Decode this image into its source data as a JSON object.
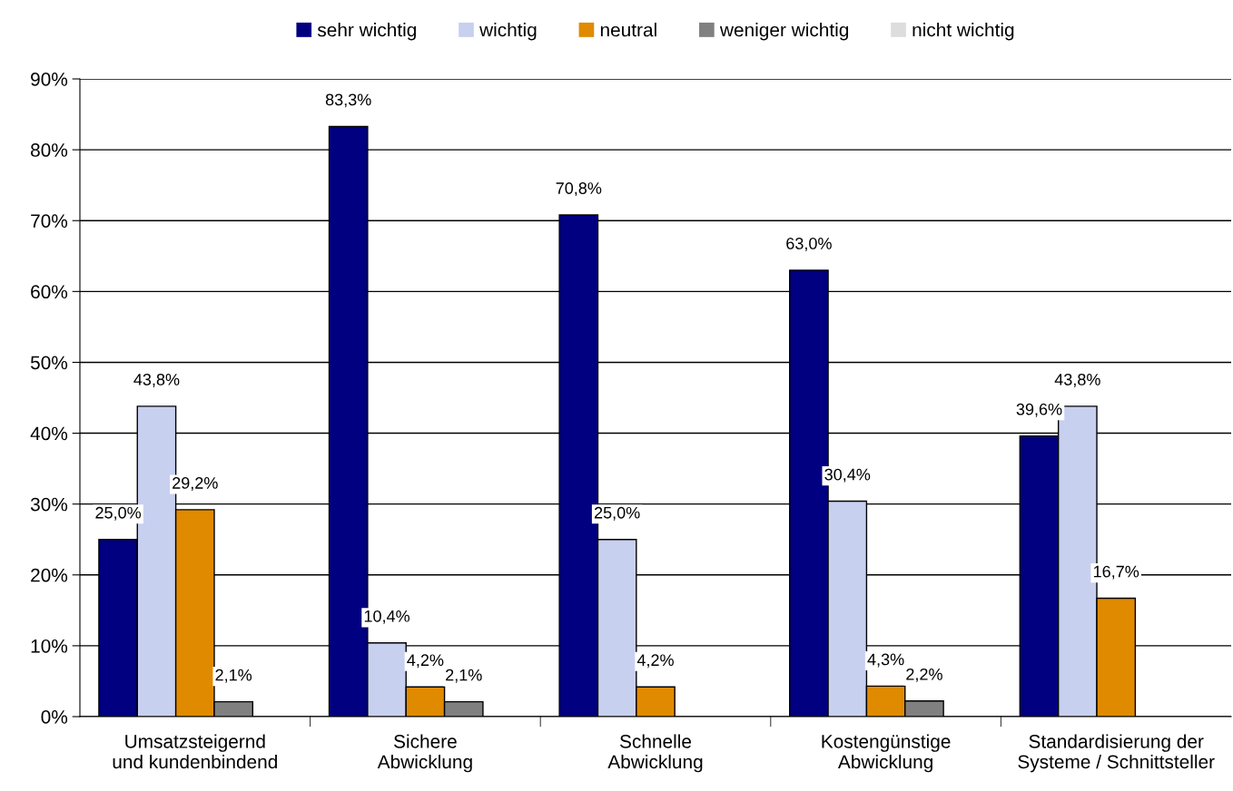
{
  "chart_data": {
    "type": "bar",
    "categories": [
      "Umsatzsteigernd\nund kundenbindend",
      "Sichere\nAbwicklung",
      "Schnelle\nAbwicklung",
      "Kostengünstige\nAbwicklung",
      "Standardisierung der\nSysteme / Schnittsteller"
    ],
    "series": [
      {
        "name": "sehr wichtig",
        "color": "#000080",
        "values": [
          25.0,
          83.3,
          70.8,
          63.0,
          39.6
        ],
        "value_labels": [
          "25,0%",
          "83,3%",
          "70,8%",
          "63,0%",
          "39,6%"
        ]
      },
      {
        "name": "wichtig",
        "color": "#c8d0f0",
        "values": [
          43.8,
          10.4,
          25.0,
          30.4,
          43.8
        ],
        "value_labels": [
          "43,8%",
          "10,4%",
          "25,0%",
          "30,4%",
          "43,8%"
        ]
      },
      {
        "name": "neutral",
        "color": "#e08a00",
        "values": [
          29.2,
          4.2,
          4.2,
          4.3,
          16.7
        ],
        "value_labels": [
          "29,2%",
          "4,2%",
          "4,2%",
          "4,3%",
          "16,7%"
        ]
      },
      {
        "name": "weniger wichtig",
        "color": "#808080",
        "values": [
          2.1,
          2.1,
          null,
          2.2,
          null
        ],
        "value_labels": [
          "2,1%",
          "2,1%",
          null,
          "2,2%",
          null
        ]
      },
      {
        "name": "nicht wichtig",
        "color": "#dddddd",
        "values": [
          null,
          null,
          null,
          null,
          null
        ],
        "value_labels": [
          null,
          null,
          null,
          null,
          null
        ]
      }
    ],
    "ylim": [
      0,
      90
    ],
    "yticks": [
      {
        "value": 0,
        "label": "0%"
      },
      {
        "value": 10,
        "label": "10%"
      },
      {
        "value": 20,
        "label": "20%"
      },
      {
        "value": 30,
        "label": "30%"
      },
      {
        "value": 40,
        "label": "40%"
      },
      {
        "value": 50,
        "label": "50%"
      },
      {
        "value": 60,
        "label": "60%"
      },
      {
        "value": 70,
        "label": "70%"
      },
      {
        "value": 80,
        "label": "80%"
      },
      {
        "value": 90,
        "label": "90%"
      }
    ],
    "grid": "y",
    "legend": "top"
  }
}
